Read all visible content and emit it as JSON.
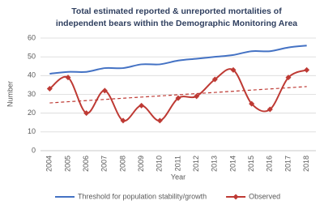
{
  "chart_data": {
    "type": "line",
    "title": [
      "Total estimated reported & unreported mortalities of",
      "independent bears within the Demographic Monitoring Area"
    ],
    "x_label": "Year",
    "y_label": "Number",
    "categories": [
      "2004",
      "2005",
      "2006",
      "2007",
      "2008",
      "2009",
      "2010",
      "2011",
      "2012",
      "2013",
      "2014",
      "2015",
      "2016",
      "2017",
      "2018"
    ],
    "series": [
      {
        "name": "Threshold for population stability/growth",
        "color": "#4472c4",
        "marker": "none",
        "values": [
          41,
          42,
          42,
          44,
          44,
          46,
          46,
          48,
          49,
          50,
          51,
          53,
          53,
          55,
          56
        ]
      },
      {
        "name": "Observed",
        "color": "#be3a34",
        "marker": "diamond",
        "values": [
          33,
          39,
          20,
          32,
          16,
          24,
          16,
          28,
          29,
          38,
          43,
          25,
          22,
          39,
          43
        ],
        "trendline": "linear"
      }
    ],
    "smooth": true,
    "ylim": [
      0,
      60
    ],
    "yticks": [
      0,
      10,
      20,
      30,
      40,
      50,
      60
    ],
    "grid": true,
    "legend": "bottom"
  }
}
